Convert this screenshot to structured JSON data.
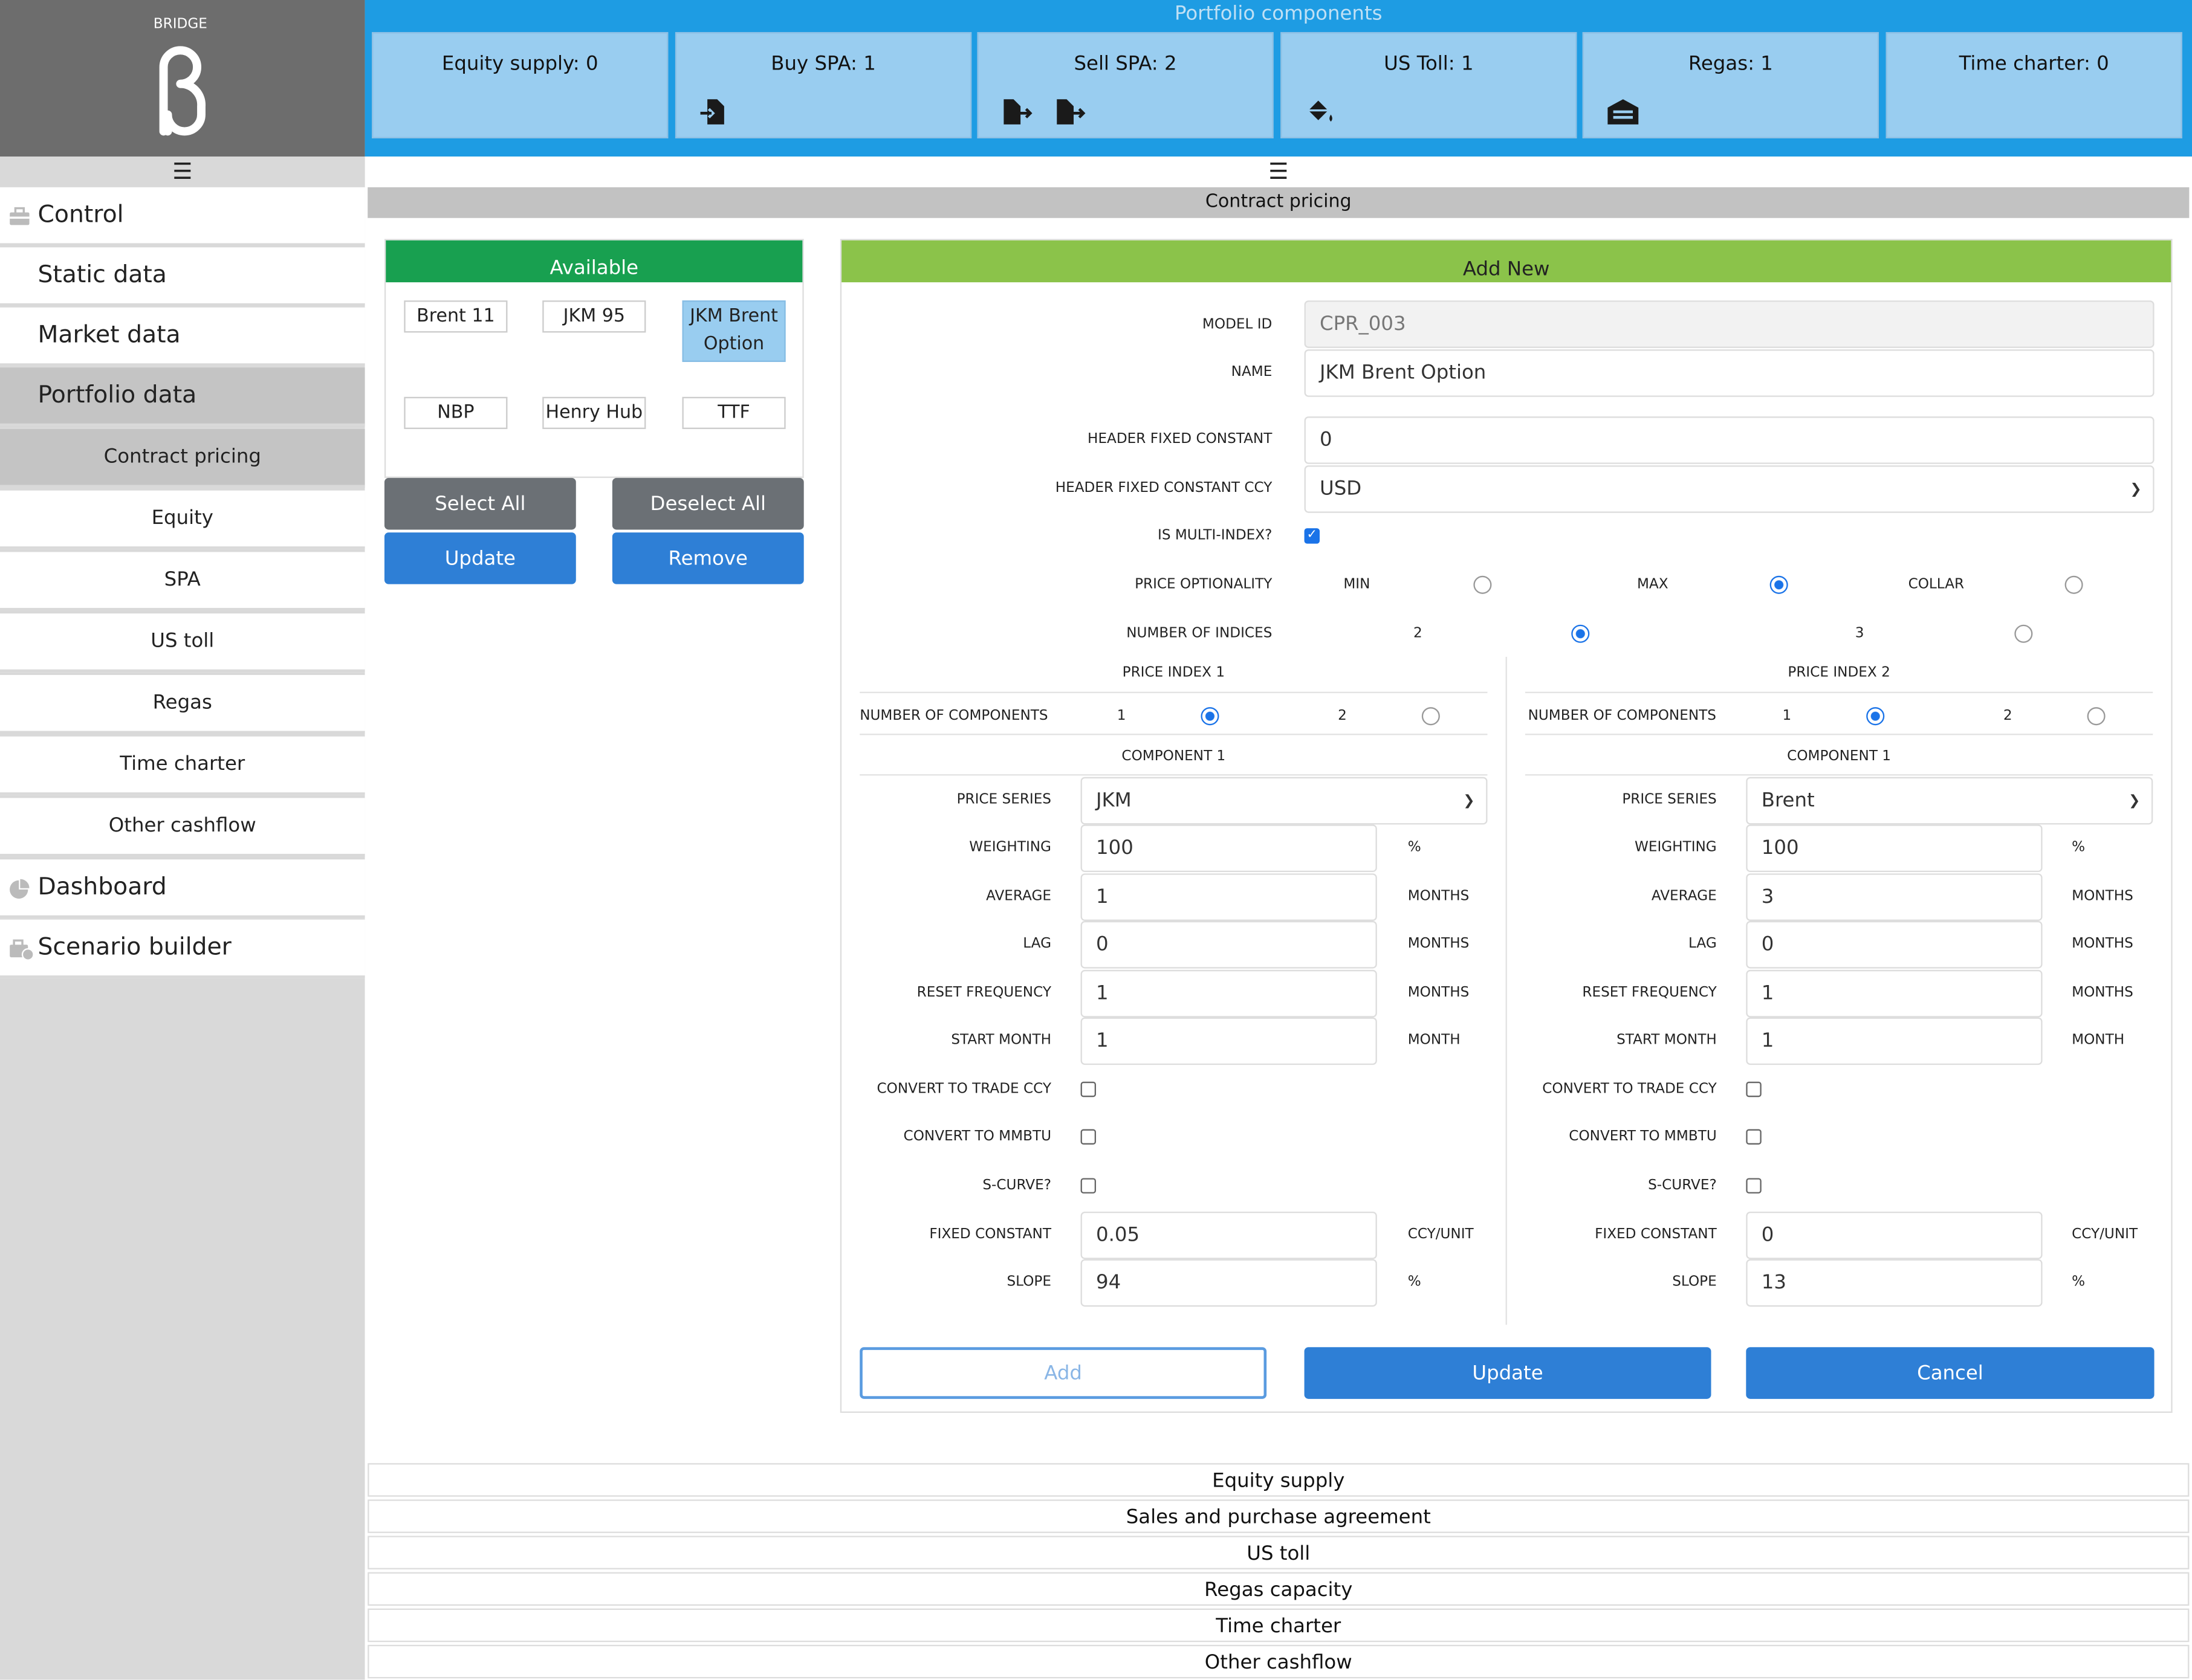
{
  "brand": {
    "name": "BRIDGE"
  },
  "sidebar": {
    "main_items": [
      {
        "label": "Control",
        "icon": "toolbox-icon"
      },
      {
        "label": "Static data"
      },
      {
        "label": "Market data"
      },
      {
        "label": "Portfolio data"
      }
    ],
    "sub_items": [
      {
        "label": "Contract pricing"
      },
      {
        "label": "Equity"
      },
      {
        "label": "SPA"
      },
      {
        "label": "US toll"
      },
      {
        "label": "Regas"
      },
      {
        "label": "Time charter"
      },
      {
        "label": "Other cashflow"
      }
    ],
    "bottom_items": [
      {
        "label": "Dashboard",
        "icon": "pie-chart-icon"
      },
      {
        "label": "Scenario builder",
        "icon": "briefcase-clock-icon"
      }
    ]
  },
  "topbar": {
    "title": "Portfolio components",
    "cards": [
      {
        "label": "Equity supply: 0"
      },
      {
        "label": "Buy SPA: 1"
      },
      {
        "label": "Sell SPA: 2"
      },
      {
        "label": "US Toll: 1"
      },
      {
        "label": "Regas: 1"
      },
      {
        "label": "Time charter: 0"
      }
    ]
  },
  "section_title": "Contract pricing",
  "available": {
    "title": "Available",
    "items": [
      "Brent 11",
      "JKM 95",
      "JKM Brent Option",
      "NBP",
      "Henry Hub",
      "TTF"
    ],
    "select_all": "Select All",
    "deselect_all": "Deselect All",
    "update": "Update",
    "remove": "Remove"
  },
  "form": {
    "title": "Add New",
    "model_id_label": "MODEL ID",
    "model_id": "CPR_003",
    "name_label": "NAME",
    "name": "JKM Brent Option",
    "header_fixed_constant_label": "HEADER FIXED CONSTANT",
    "header_fixed_constant": "0",
    "header_ccy_label": "HEADER FIXED CONSTANT CCY",
    "header_ccy": "USD",
    "multi_index_label": "IS MULTI-INDEX?",
    "price_optionality_label": "PRICE OPTIONALITY",
    "opt_min": "MIN",
    "opt_max": "MAX",
    "opt_collar": "COLLAR",
    "num_indices_label": "NUMBER OF INDICES",
    "num_indices_2": "2",
    "num_indices_3": "3",
    "labels": {
      "num_components": "NUMBER OF COMPONENTS",
      "component": "COMPONENT 1",
      "price_series": "PRICE SERIES",
      "weighting": "WEIGHTING",
      "average": "AVERAGE",
      "lag": "LAG",
      "reset_frequency": "RESET FREQUENCY",
      "start_month": "START MONTH",
      "convert_trade_ccy": "CONVERT TO TRADE CCY",
      "convert_mmbtu": "CONVERT TO MMBTU",
      "s_curve": "S-CURVE?",
      "fixed_constant": "FIXED CONSTANT",
      "slope": "SLOPE",
      "opt1": "1",
      "opt2": "2"
    },
    "units": {
      "pct": "%",
      "months": "MONTHS",
      "month": "MONTH",
      "ccy_unit": "CCY/UNIT"
    },
    "index1": {
      "title": "PRICE INDEX 1",
      "price_series": "JKM",
      "weighting": "100",
      "average": "1",
      "lag": "0",
      "reset_frequency": "1",
      "start_month": "1",
      "fixed_constant": "0.05",
      "slope": "94"
    },
    "index2": {
      "title": "PRICE INDEX 2",
      "price_series": "Brent",
      "weighting": "100",
      "average": "3",
      "lag": "0",
      "reset_frequency": "1",
      "start_month": "1",
      "fixed_constant": "0",
      "slope": "13"
    },
    "buttons": {
      "add": "Add",
      "update": "Update",
      "cancel": "Cancel"
    }
  },
  "accordions": [
    "Equity supply",
    "Sales and purchase agreement",
    "US toll",
    "Regas capacity",
    "Time charter",
    "Other cashflow"
  ],
  "colors": {
    "topbar": "#1e9ce3",
    "card": "#99cdf0",
    "available_header": "#18a050",
    "form_header": "#8bc34a",
    "primary": "#2e7fd6",
    "sidebar": "#d9d9d9"
  }
}
